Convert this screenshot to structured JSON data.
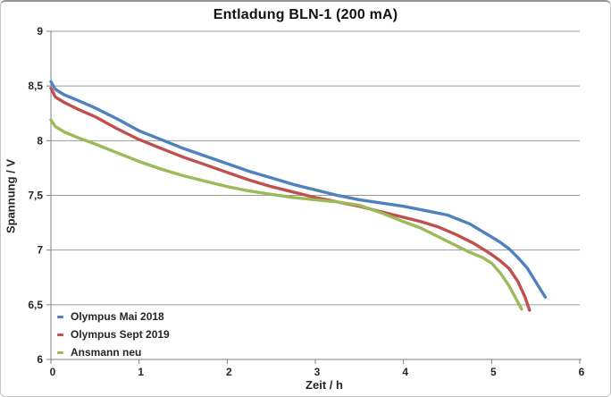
{
  "chart_data": {
    "type": "line",
    "title": "Entladung BLN-1 (200 mA)",
    "xlabel": "Zeit / h",
    "ylabel": "Spannung / V",
    "xlim": [
      0,
      6
    ],
    "ylim": [
      6,
      9
    ],
    "x_ticks": [
      0,
      1,
      2,
      3,
      4,
      5,
      6
    ],
    "x_tick_labels": [
      "0",
      "1",
      "2",
      "3",
      "4",
      "5",
      "6"
    ],
    "y_ticks": [
      6,
      6.5,
      7,
      7.5,
      8,
      8.5,
      9
    ],
    "y_tick_labels": [
      "6",
      "6,5",
      "7",
      "7,5",
      "8",
      "8,5",
      "9"
    ],
    "grid": "horizontal",
    "legend_position": "bottom-left",
    "colors": {
      "gridline": "#9b9b9b",
      "axis": "#808080",
      "text": "#262626"
    },
    "series": [
      {
        "name": "Olympus Mai 2018",
        "color": "#4F81BD",
        "points": [
          [
            0,
            8.54
          ],
          [
            0.05,
            8.47
          ],
          [
            0.15,
            8.42
          ],
          [
            0.3,
            8.37
          ],
          [
            0.5,
            8.3
          ],
          [
            0.75,
            8.2
          ],
          [
            1,
            8.09
          ],
          [
            1.25,
            8.01
          ],
          [
            1.5,
            7.93
          ],
          [
            1.75,
            7.86
          ],
          [
            2,
            7.79
          ],
          [
            2.25,
            7.72
          ],
          [
            2.5,
            7.66
          ],
          [
            2.75,
            7.6
          ],
          [
            3,
            7.55
          ],
          [
            3.25,
            7.5
          ],
          [
            3.5,
            7.46
          ],
          [
            3.75,
            7.43
          ],
          [
            4,
            7.4
          ],
          [
            4.25,
            7.36
          ],
          [
            4.5,
            7.32
          ],
          [
            4.75,
            7.24
          ],
          [
            5,
            7.12
          ],
          [
            5.1,
            7.07
          ],
          [
            5.2,
            7.01
          ],
          [
            5.3,
            6.93
          ],
          [
            5.4,
            6.84
          ],
          [
            5.5,
            6.71
          ],
          [
            5.57,
            6.62
          ],
          [
            5.61,
            6.57
          ]
        ]
      },
      {
        "name": "Olympus Sept 2019",
        "color": "#C0504D",
        "points": [
          [
            0,
            8.48
          ],
          [
            0.05,
            8.4
          ],
          [
            0.15,
            8.35
          ],
          [
            0.3,
            8.29
          ],
          [
            0.5,
            8.22
          ],
          [
            0.75,
            8.11
          ],
          [
            1,
            8.01
          ],
          [
            1.25,
            7.93
          ],
          [
            1.5,
            7.85
          ],
          [
            1.75,
            7.78
          ],
          [
            2,
            7.71
          ],
          [
            2.25,
            7.64
          ],
          [
            2.5,
            7.58
          ],
          [
            2.75,
            7.53
          ],
          [
            3,
            7.48
          ],
          [
            3.25,
            7.44
          ],
          [
            3.5,
            7.4
          ],
          [
            3.75,
            7.35
          ],
          [
            4,
            7.3
          ],
          [
            4.2,
            7.26
          ],
          [
            4.4,
            7.21
          ],
          [
            4.6,
            7.14
          ],
          [
            4.8,
            7.06
          ],
          [
            5,
            6.96
          ],
          [
            5.1,
            6.9
          ],
          [
            5.2,
            6.83
          ],
          [
            5.3,
            6.71
          ],
          [
            5.38,
            6.57
          ],
          [
            5.43,
            6.45
          ]
        ]
      },
      {
        "name": "Ansmann neu",
        "color": "#9BBB59",
        "points": [
          [
            0,
            8.19
          ],
          [
            0.05,
            8.13
          ],
          [
            0.15,
            8.08
          ],
          [
            0.3,
            8.03
          ],
          [
            0.5,
            7.97
          ],
          [
            0.75,
            7.89
          ],
          [
            1,
            7.81
          ],
          [
            1.25,
            7.74
          ],
          [
            1.5,
            7.68
          ],
          [
            1.75,
            7.63
          ],
          [
            2,
            7.58
          ],
          [
            2.25,
            7.54
          ],
          [
            2.5,
            7.51
          ],
          [
            2.75,
            7.48
          ],
          [
            3,
            7.46
          ],
          [
            3.25,
            7.44
          ],
          [
            3.5,
            7.41
          ],
          [
            3.75,
            7.34
          ],
          [
            4,
            7.26
          ],
          [
            4.2,
            7.2
          ],
          [
            4.4,
            7.12
          ],
          [
            4.6,
            7.04
          ],
          [
            4.75,
            6.98
          ],
          [
            4.9,
            6.93
          ],
          [
            5,
            6.88
          ],
          [
            5.1,
            6.79
          ],
          [
            5.2,
            6.67
          ],
          [
            5.28,
            6.55
          ],
          [
            5.34,
            6.46
          ]
        ]
      }
    ]
  }
}
